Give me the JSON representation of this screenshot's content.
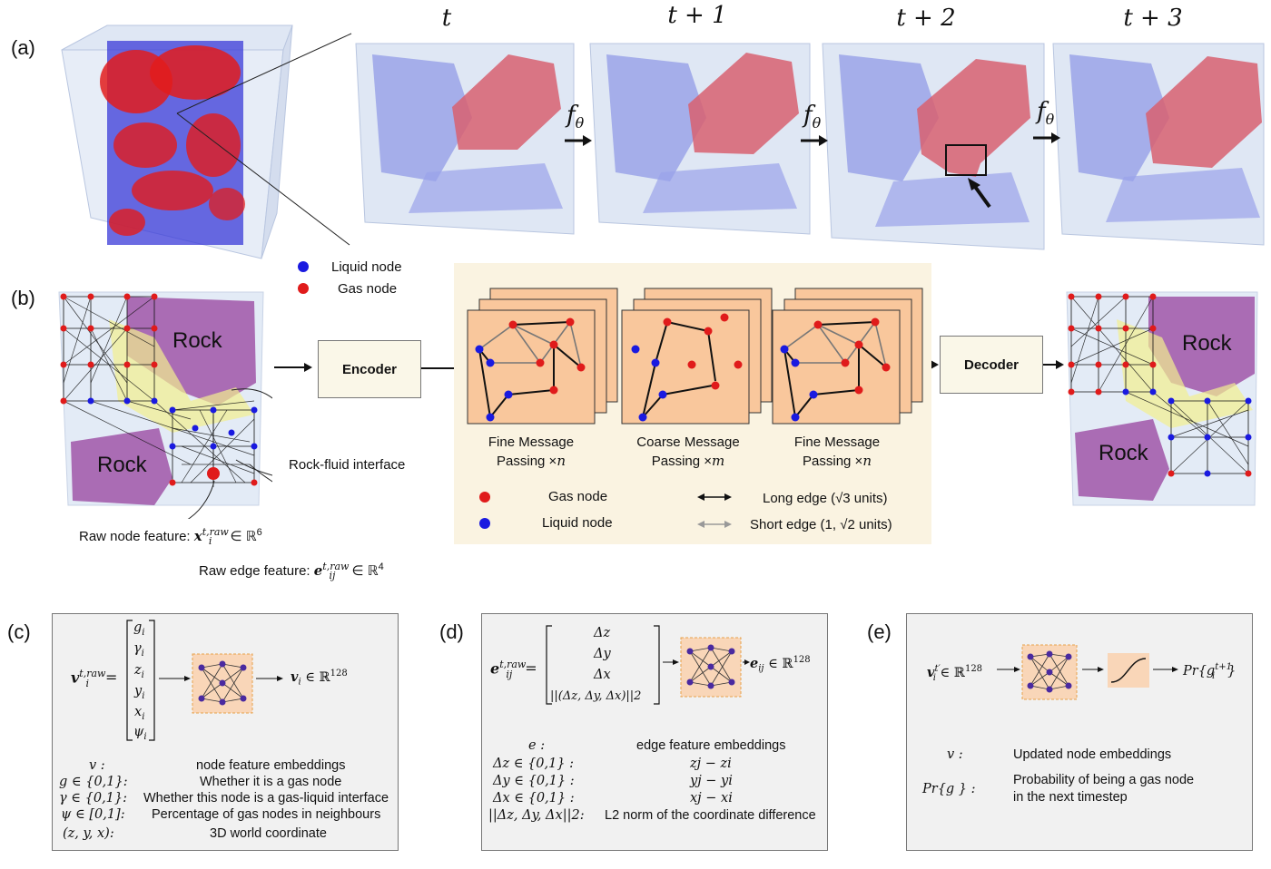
{
  "panel_labels": {
    "a": "(a)",
    "b": "(b)",
    "c": "(c)",
    "d": "(d)",
    "e": "(e)"
  },
  "timesteps": [
    "t",
    "t + 1",
    "t + 2",
    "t + 3"
  ],
  "operator": "f",
  "operator_sub": "θ",
  "legend_top": {
    "liquid": "Liquid node",
    "gas": "Gas node"
  },
  "rock_label": "Rock",
  "rock_fluid_interface": "Rock-fluid interface",
  "raw_node_feature": {
    "text": "Raw node feature: ",
    "math": "x",
    "sup": "t,raw",
    "sub": "i",
    "space": " ∈ ℝ",
    "dim": "6"
  },
  "raw_edge_feature": {
    "text": "Raw edge feature: ",
    "math": "e",
    "sup": "t,raw",
    "sub": "ij",
    "space": " ∈ ℝ",
    "dim": "4"
  },
  "encoder": "Encoder",
  "decoder": "Decoder",
  "mp": {
    "fine1": {
      "line1": "Fine Message",
      "line2": "Passing ×",
      "n": "n"
    },
    "coarse": {
      "line1": "Coarse Message",
      "line2": "Passing ×",
      "n": "m"
    },
    "fine2": {
      "line1": "Fine Message",
      "line2": "Passing ×",
      "n": "n"
    }
  },
  "legend_box": {
    "gas": "Gas node",
    "liquid": "Liquid node",
    "long_edge": "Long edge (√3 units)",
    "short_edge": "Short edge (1, √2 units)"
  },
  "panel_c": {
    "vector_left": "v",
    "vector_left_sup": "t,raw",
    "vector_left_sub": "i",
    "entries": [
      "g",
      "γ",
      "z",
      "y",
      "x",
      "ψ"
    ],
    "output": "v",
    "output_rest": " ∈ ℝ",
    "output_dim": "128",
    "rows": [
      {
        "sym": "v : ",
        "desc": "node feature embeddings"
      },
      {
        "sym": "g ∈ {0,1}:",
        "desc": "Whether it is a gas node"
      },
      {
        "sym": "γ ∈ {0,1}:",
        "desc": "Whether this node is a gas-liquid interface"
      },
      {
        "sym": "ψ ∈ [0,1]:",
        "desc": "Percentage of gas nodes in neighbours"
      },
      {
        "sym": "(z, y, x):",
        "desc": "3D world coordinate"
      }
    ]
  },
  "panel_d": {
    "vector_left": "e",
    "vector_left_sup": "t,raw",
    "vector_left_sub": "ij",
    "entries": [
      "Δz",
      "Δy",
      "Δx",
      "||(Δz, Δy, Δx)||2"
    ],
    "output": "e",
    "output_sub": "ij",
    "output_rest": " ∈ ℝ",
    "output_dim": "128",
    "rows": [
      {
        "sym": "e :",
        "desc": "edge feature embeddings"
      },
      {
        "sym": "Δz ∈ {0,1} :",
        "desc": "zj − zi"
      },
      {
        "sym": "Δy ∈ {0,1} :",
        "desc": "yj − yi"
      },
      {
        "sym": "Δx ∈ {0,1} :",
        "desc": "xj − xi"
      },
      {
        "sym": "||Δz, Δy, Δx||2:",
        "desc": "L2 norm of the coordinate difference"
      }
    ]
  },
  "panel_e": {
    "input": "v",
    "input_rest": " ∈ ℝ",
    "input_dim": "128",
    "output": "Pr{g",
    "output_sup": "t+1",
    "output_end": "}",
    "rows": [
      {
        "sym": "v :",
        "desc": "Updated node embeddings"
      },
      {
        "sym": "Pr{g } :",
        "desc": "Probability of being a gas node",
        "desc2": "in the next timestep"
      }
    ]
  },
  "colors": {
    "gas": "#e01b1b",
    "liquid": "#1a1ae0",
    "rock": "#a056a8",
    "mp_bg": "#f9c79c",
    "legend_bg": "#faf3e1"
  }
}
